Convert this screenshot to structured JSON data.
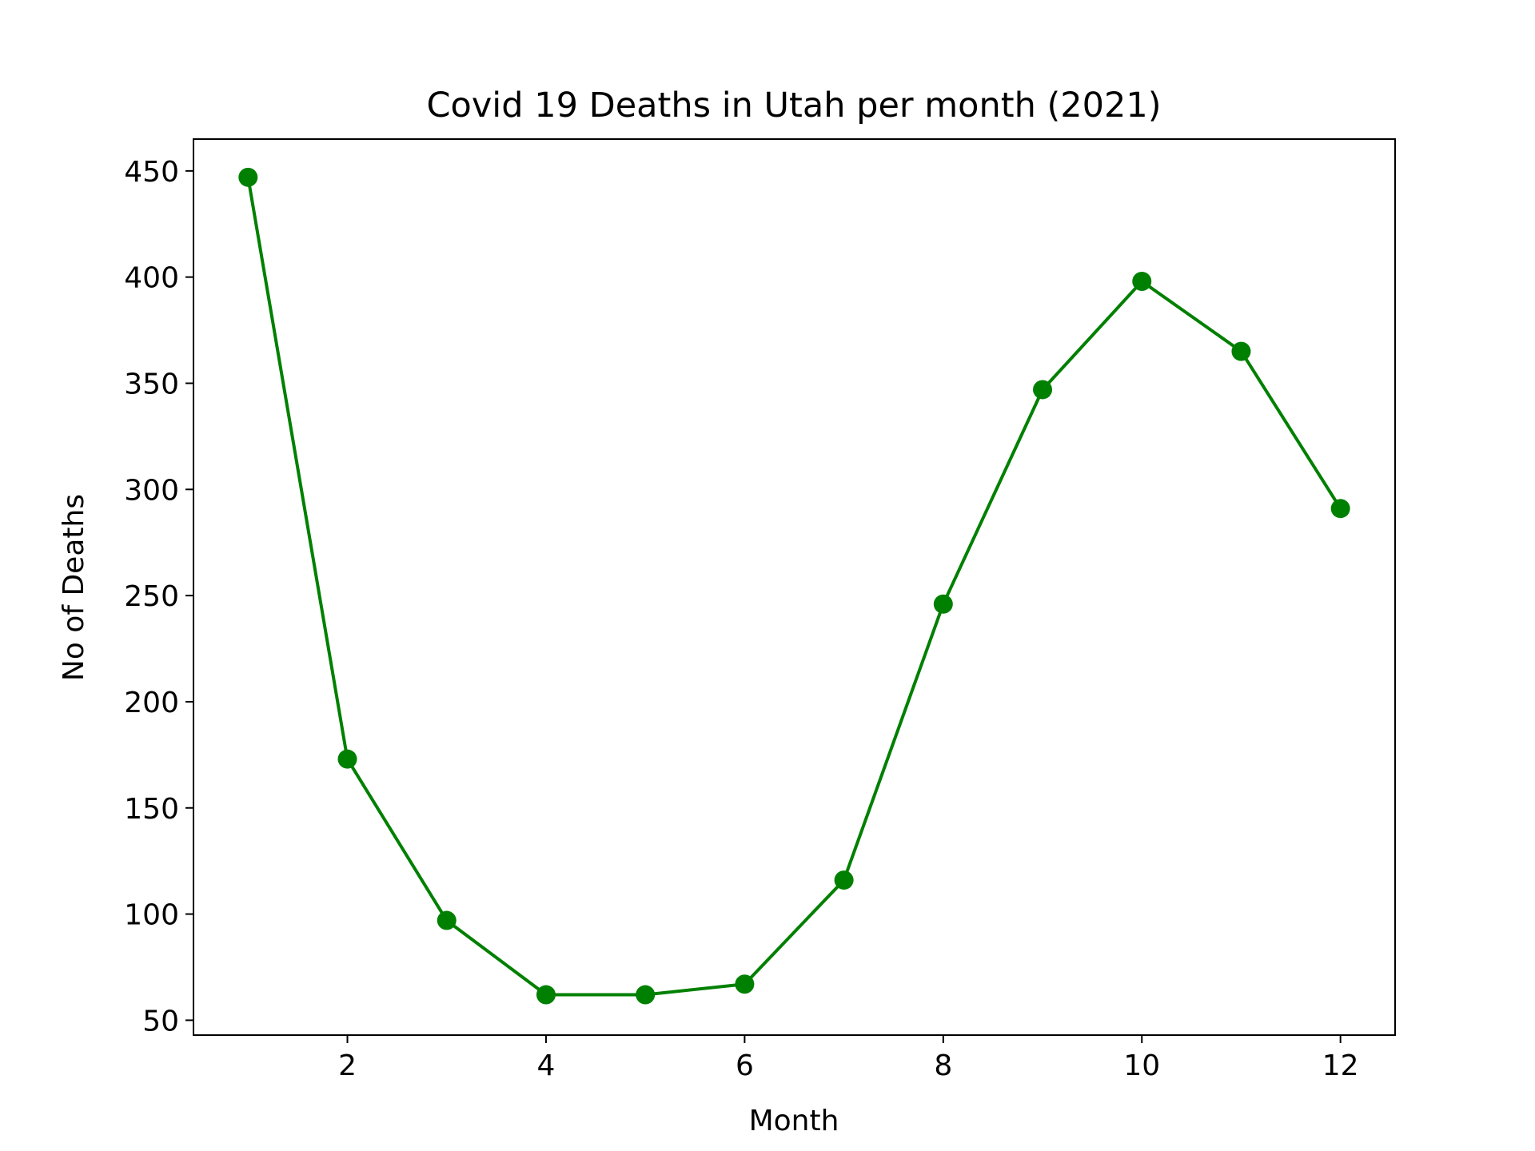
{
  "chart_data": {
    "type": "line",
    "title": "Covid 19 Deaths in Utah per month (2021)",
    "xlabel": "Month",
    "ylabel": "No of Deaths",
    "xlim": [
      0.45,
      12.55
    ],
    "ylim": [
      43,
      465
    ],
    "xticks": [
      2,
      4,
      6,
      8,
      10,
      12
    ],
    "yticks": [
      50,
      100,
      150,
      200,
      250,
      300,
      350,
      400,
      450
    ],
    "grid": false,
    "legend": "none",
    "color": "#008000",
    "marker": "circle",
    "series": [
      {
        "x": [
          1,
          2,
          3,
          4,
          5,
          6,
          7,
          8,
          9,
          10,
          11,
          12
        ],
        "y": [
          447,
          173,
          97,
          62,
          62,
          67,
          116,
          246,
          347,
          398,
          365,
          291
        ]
      }
    ]
  }
}
